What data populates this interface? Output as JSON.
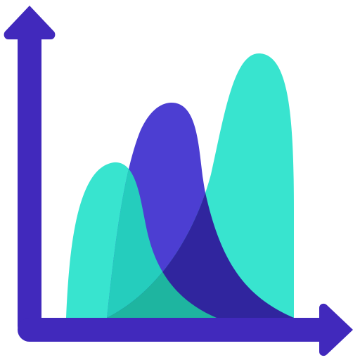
{
  "icon": {
    "name": "area-chart-icon",
    "colors": {
      "axis": "#4129BC",
      "peak_teal": "#38E4CF",
      "peak_purple": "#4C3ED2",
      "overlap_teal_purple": "#25CDBD",
      "overlap_purple_teal": "#30259E",
      "overlap_triple": "#1EB5A0"
    }
  }
}
